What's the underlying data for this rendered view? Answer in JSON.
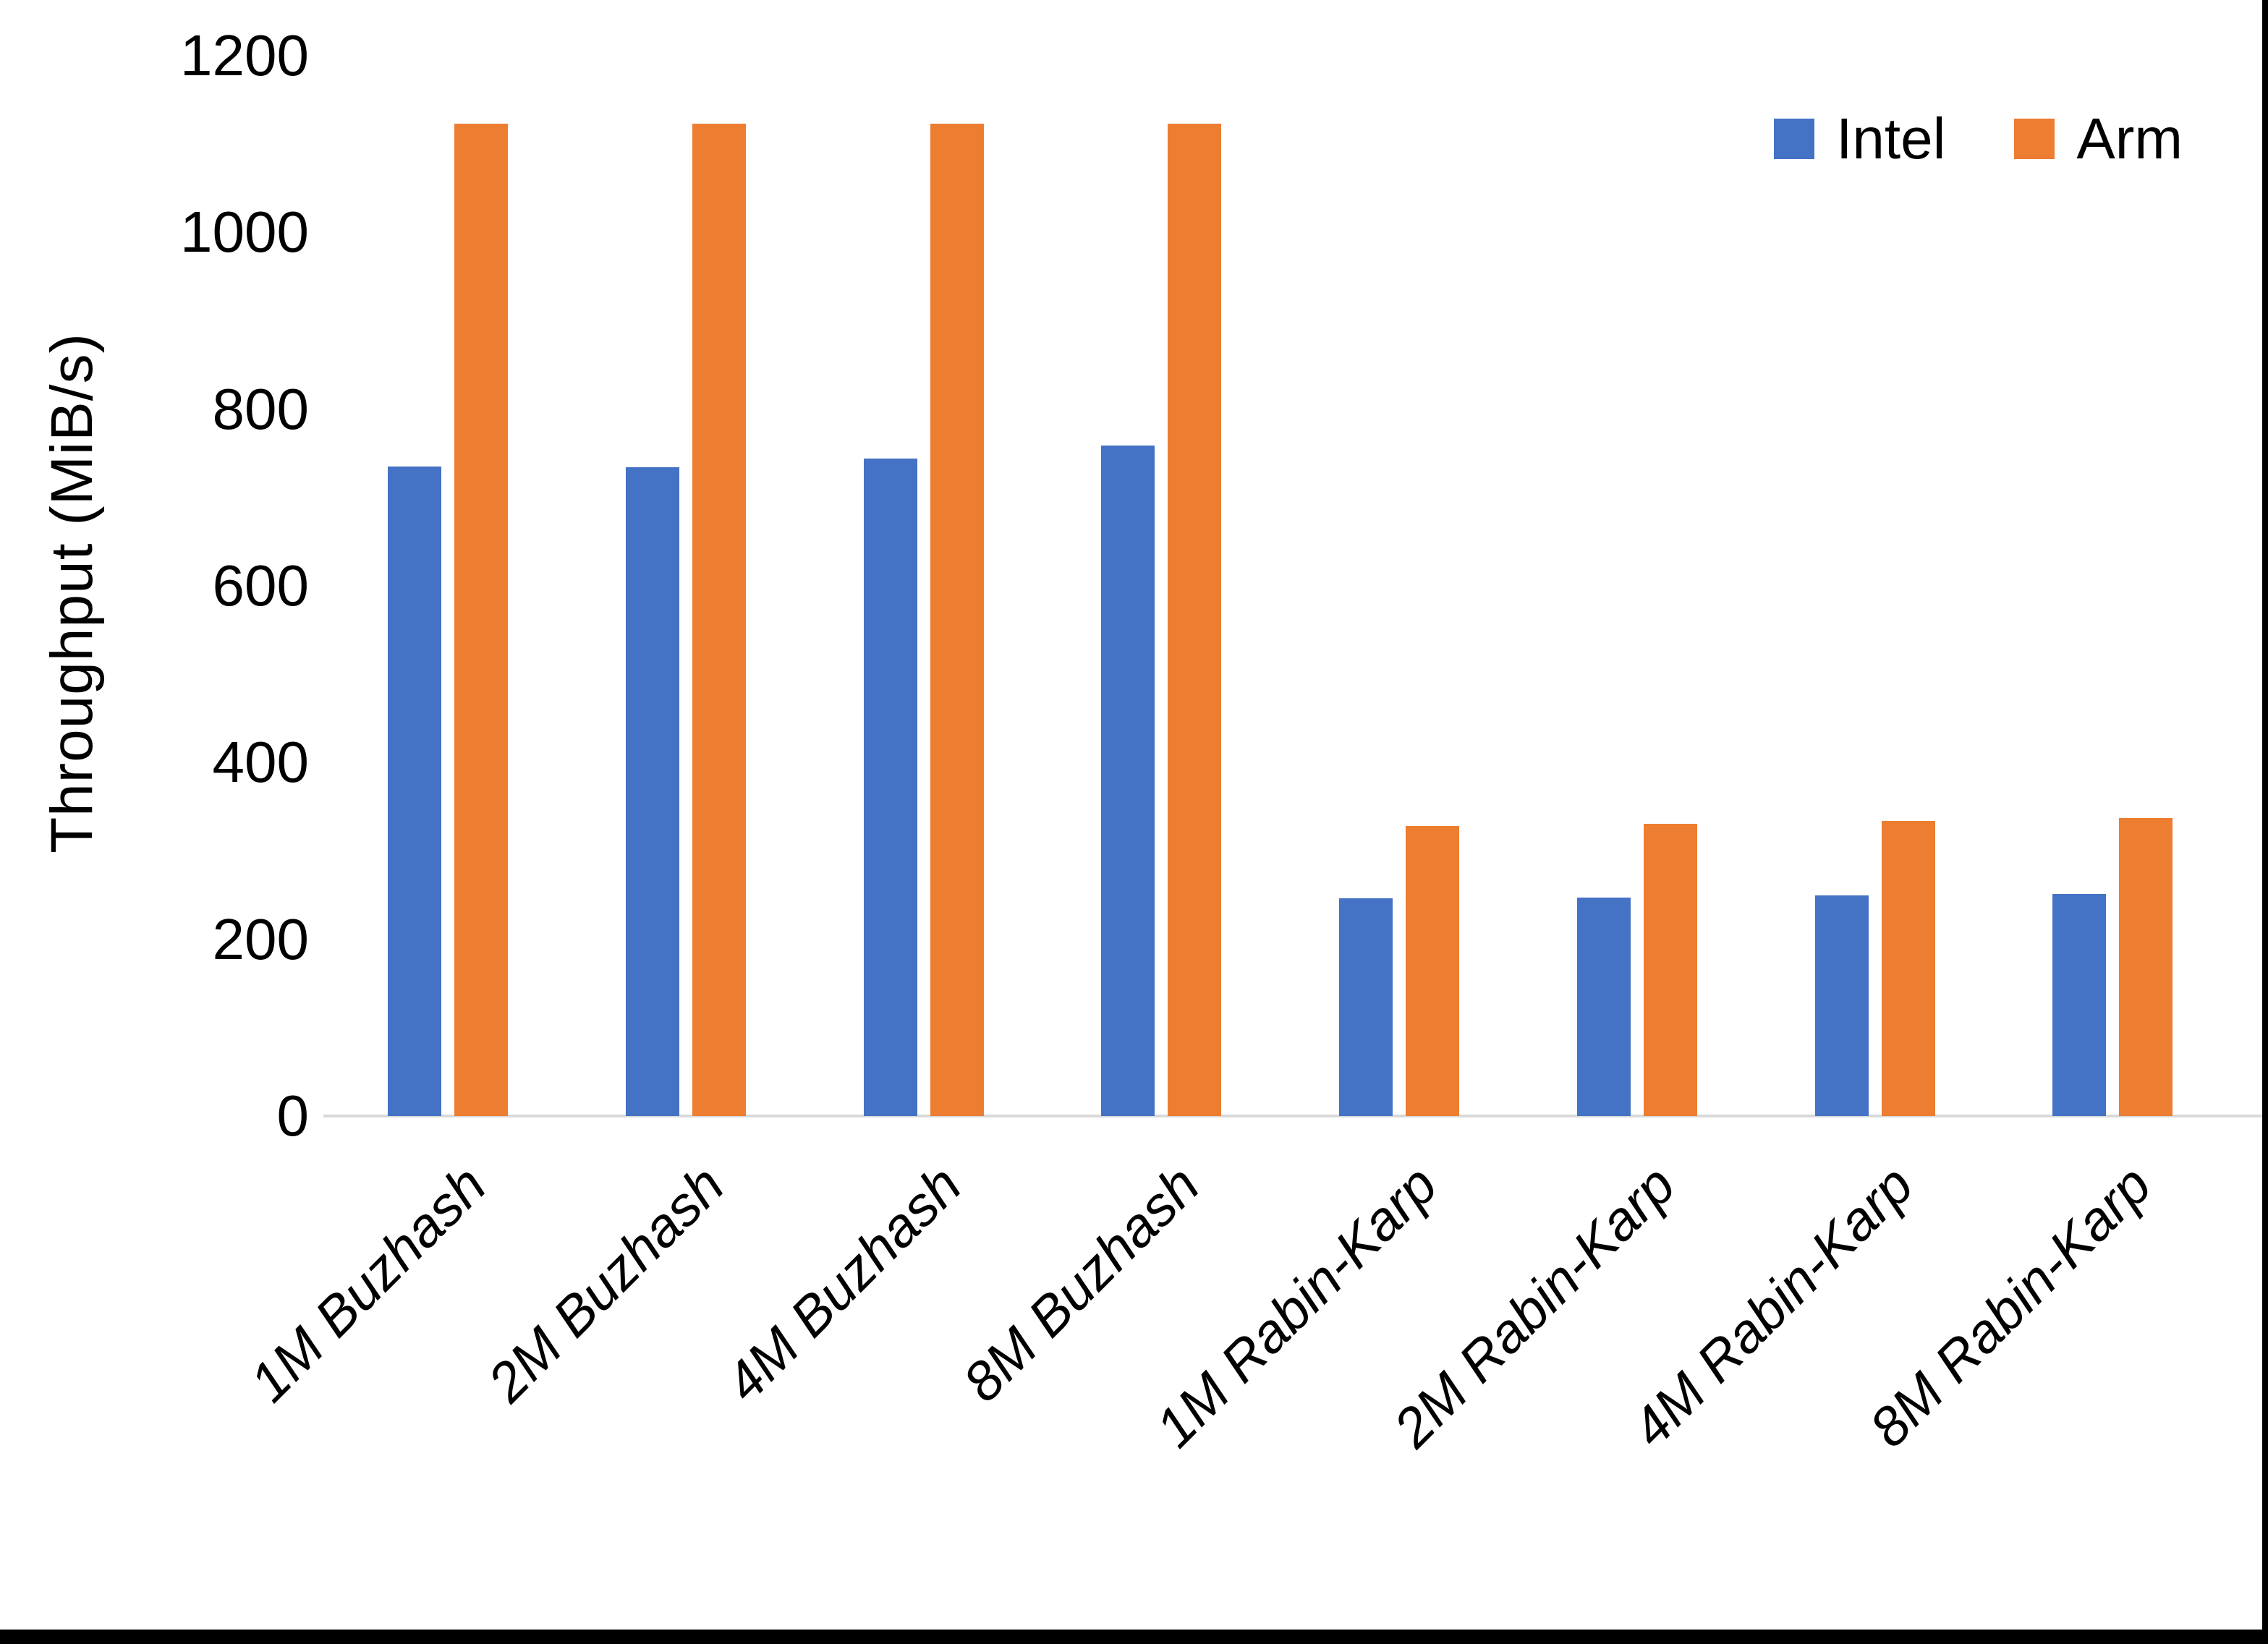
{
  "chart_data": {
    "type": "bar",
    "categories": [
      "1M Buzhash",
      "2M Buzhash",
      "4M Buzhash",
      "8M Buzhash",
      "1M Rabin-Karp",
      "2M Rabin-Karp",
      "4M Rabin-Karp",
      "8M Rabin-Karp"
    ],
    "series": [
      {
        "name": "Intel",
        "color": "#4472C4",
        "values": [
          735,
          734,
          744,
          759,
          246,
          247,
          250,
          251
        ]
      },
      {
        "name": "Arm",
        "color": "#ED7D31",
        "values": [
          1123,
          1123,
          1123,
          1123,
          328,
          331,
          334,
          337
        ]
      }
    ],
    "title": "",
    "xlabel": "",
    "ylabel": "Throughput (MiB/s)",
    "ylim": [
      0,
      1200
    ],
    "yticks": [
      0,
      200,
      400,
      600,
      800,
      1000,
      1200
    ],
    "grid": false,
    "legend_position": "top-right",
    "axis_line_color": "#D9D9D9",
    "text_color": "#000000",
    "border_color": "#000000"
  }
}
